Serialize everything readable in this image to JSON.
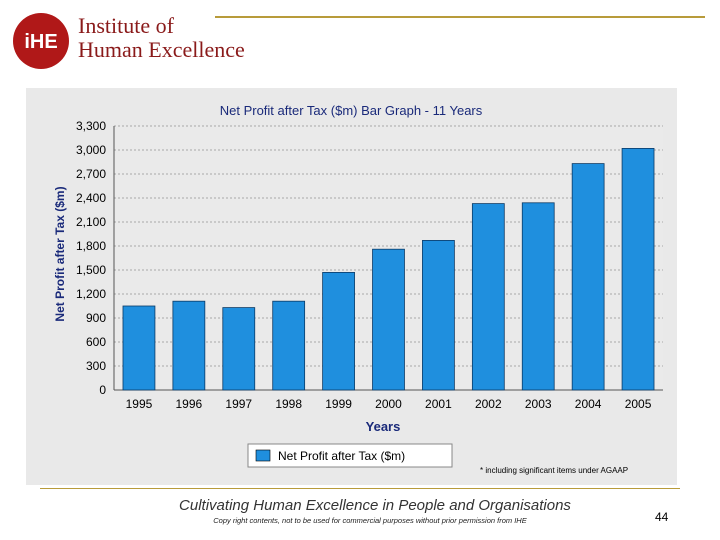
{
  "header": {
    "org_line1": "Institute of",
    "org_line2": "Human Excellence",
    "logo_text": "iHE"
  },
  "chart_data": {
    "type": "bar",
    "title": "Net Profit after Tax ($m) Bar Graph - 11 Years",
    "xlabel": "Years",
    "ylabel": "Net Profit after Tax ($m)",
    "categories": [
      "1995",
      "1996",
      "1997",
      "1998",
      "1999",
      "2000",
      "2001",
      "2002",
      "2003",
      "2004",
      "2005"
    ],
    "series": [
      {
        "name": "Net Profit after Tax ($m)",
        "values": [
          1050,
          1110,
          1030,
          1110,
          1470,
          1760,
          1870,
          2330,
          2340,
          2830,
          3020
        ]
      }
    ],
    "ylim": [
      0,
      3300
    ],
    "yticks": [
      "0",
      "300",
      "600",
      "900",
      "1,200",
      "1,500",
      "1,800",
      "2,100",
      "2,400",
      "2,700",
      "3,000",
      "3,300"
    ],
    "grid": true,
    "legend_position": "bottom-center",
    "bar_color": "#1f8fde"
  },
  "footnote": "* including significant items under AGAAP",
  "footer": {
    "tagline": "Cultivating Human Excellence in People and Organisations",
    "copyright": "Copy right contents, not to be used for commercial purposes without prior permission from IHE",
    "page_number": "44"
  }
}
